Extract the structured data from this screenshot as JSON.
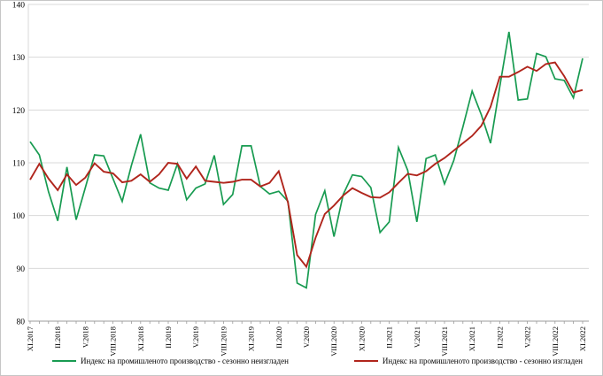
{
  "chart": {
    "background": "#ffffff",
    "border_color": "#c6c6c6",
    "grid_color": "#d9d9d9",
    "axis_color": "#9b9b9b",
    "axis_text_color": "#000000",
    "series_colors": {
      "unadjusted": "#189b51",
      "adjusted": "#b0251c"
    }
  },
  "chart_data": {
    "type": "line",
    "title": "",
    "xlabel": "",
    "ylabel": "",
    "ylim": [
      80,
      140
    ],
    "ytick_step": 10,
    "grid": true,
    "legend_position": "bottom",
    "x": [
      "XI.2017",
      "XII.2017",
      "I.2018",
      "II.2018",
      "III.2018",
      "IV.2018",
      "V.2018",
      "VI.2018",
      "VII.2018",
      "VIII.2018",
      "IX.2018",
      "X.2018",
      "XI.2018",
      "XII.2018",
      "I.2019",
      "II.2019",
      "III.2019",
      "IV.2019",
      "V.2019",
      "VI.2019",
      "VII.2019",
      "VIII.2019",
      "IX.2019",
      "X.2019",
      "XI.2019",
      "XII.2019",
      "I.2020",
      "II.2020",
      "III.2020",
      "IV.2020",
      "V.2020",
      "VI.2020",
      "VII.2020",
      "VIII.2020",
      "IX.2020",
      "X.2020",
      "XI.2020",
      "XII.2020",
      "I.2021",
      "II.2021",
      "III.2021",
      "IV.2021",
      "V.2021",
      "VI.2021",
      "VII.2021",
      "VIII.2021",
      "IX.2021",
      "X.2021",
      "XI.2021",
      "XII.2021",
      "I.2022",
      "II.2022",
      "III.2022",
      "IV.2022",
      "V.2022",
      "VI.2022",
      "VII.2022",
      "VIII.2022",
      "IX.2022",
      "X.2022",
      "XI.2022"
    ],
    "x_tick_every": 3,
    "x_tick_labels": [
      "XI.2017",
      "II.2018",
      "V.2018",
      "VIII.2018",
      "XI.2018",
      "II.2019",
      "V.2019",
      "VIII.2019",
      "XI.2019",
      "II.2020",
      "V.2020",
      "VIII.2020",
      "XI.2020",
      "II.2021",
      "V.2021",
      "VIII.2021",
      "XI.2021",
      "II.2022",
      "V.2022",
      "VIII.2022",
      "XI.2022"
    ],
    "y_tick_labels": [
      "80",
      "90",
      "100",
      "110",
      "120",
      "130",
      "140"
    ],
    "series": [
      {
        "name": "Индекс на промишленото производство - сезонно  неизгладен",
        "color": "#189b51",
        "values": [
          114,
          111.5,
          104.5,
          99,
          109.2,
          99.2,
          105.3,
          111.5,
          111.3,
          107,
          102.7,
          109.5,
          115.4,
          106.2,
          105.2,
          104.8,
          109.8,
          103,
          105.2,
          106,
          111.4,
          102.1,
          104,
          113.2,
          113.2,
          105.5,
          104.1,
          104.6,
          102.7,
          87.2,
          86.3,
          100.2,
          104.7,
          96,
          104,
          107.7,
          107.4,
          105.3,
          96.8,
          98.8,
          112.9,
          108.6,
          98.8,
          110.8,
          111.5,
          106,
          110.4,
          116.8,
          123.6,
          119.1,
          113.7,
          124.4,
          134.8,
          121.9,
          122.1,
          130.7,
          130.1,
          125.9,
          125.6,
          122.3,
          129.8
        ]
      },
      {
        "name": "Индекс на промишленото производство - сезонно изгладен",
        "color": "#b0251c",
        "values": [
          106.8,
          109.8,
          107,
          104.8,
          107.8,
          105.8,
          107.2,
          109.9,
          108.3,
          108,
          106.3,
          106.6,
          107.8,
          106.4,
          107.8,
          110,
          109.8,
          107,
          109.3,
          106.6,
          106.4,
          106.2,
          106.4,
          106.8,
          106.8,
          105.5,
          106.2,
          108.4,
          102.5,
          92.5,
          90.3,
          95.8,
          100.3,
          101.9,
          103.8,
          105.2,
          104.3,
          103.5,
          103.4,
          104.4,
          106.2,
          107.9,
          107.6,
          108.4,
          109.8,
          110.9,
          112.3,
          113.7,
          115.1,
          117,
          120.6,
          126.3,
          126.3,
          127.2,
          128.2,
          127.4,
          128.7,
          129,
          126.4,
          123.3,
          123.8
        ]
      }
    ]
  }
}
